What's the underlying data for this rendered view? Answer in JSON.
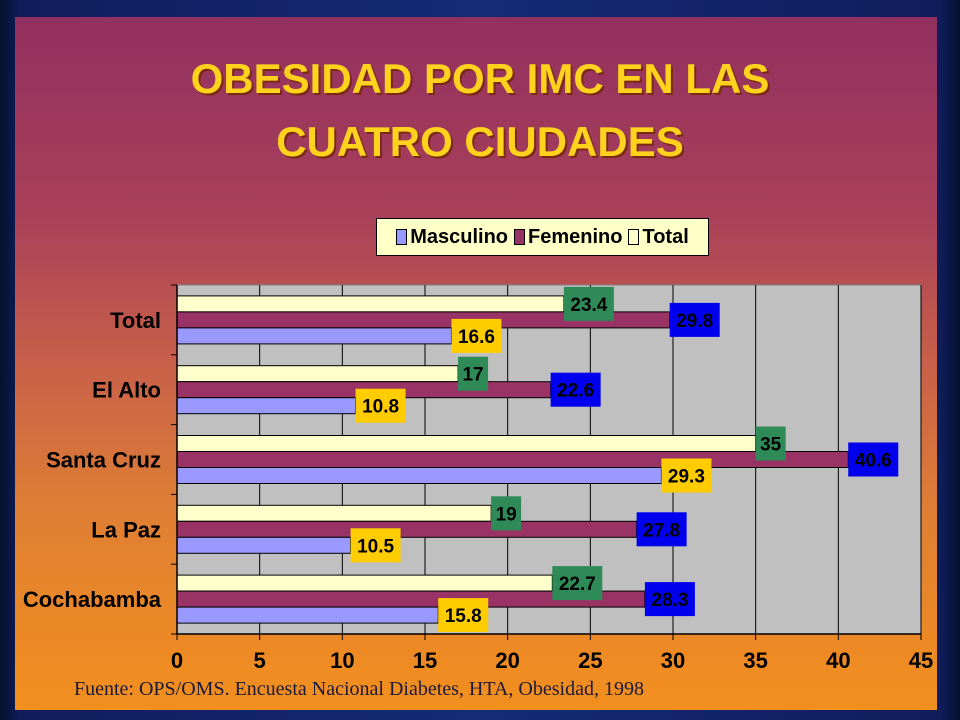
{
  "title_line1": "OBESIDAD POR IMC EN LAS",
  "title_line2": "CUATRO CIUDADES",
  "legend": [
    {
      "label": "Masculino",
      "color": "#9999ff"
    },
    {
      "label": "Femenino",
      "color": "#993366"
    },
    {
      "label": "Total",
      "color": "#ffffcc"
    }
  ],
  "footer_source": "Fuente: OPS/OMS. Encuesta Nacional Diabetes, HTA, Obesidad,  1998",
  "chart_data": {
    "type": "bar",
    "orientation": "horizontal",
    "categories": [
      "Total",
      "El Alto",
      "Santa Cruz",
      "La Paz",
      "Cochabamba"
    ],
    "series": [
      {
        "name": "Masculino",
        "values": [
          16.6,
          10.8,
          29.3,
          10.5,
          15.8
        ],
        "color": "#9999ff",
        "label_bg": "#ffcc00"
      },
      {
        "name": "Femenino",
        "values": [
          29.8,
          22.6,
          40.6,
          27.8,
          28.3
        ],
        "color": "#993366",
        "label_bg": "#0000ee"
      },
      {
        "name": "Total",
        "values": [
          23.4,
          17,
          35,
          19,
          22.7
        ],
        "color": "#ffffcc",
        "label_bg": "#2e8b57"
      }
    ],
    "xlim": [
      0,
      45
    ],
    "xticks": [
      0,
      5,
      10,
      15,
      20,
      25,
      30,
      35,
      40,
      45
    ],
    "grid": true,
    "legend_position": "top",
    "plot_background": "#c0c0c0"
  }
}
